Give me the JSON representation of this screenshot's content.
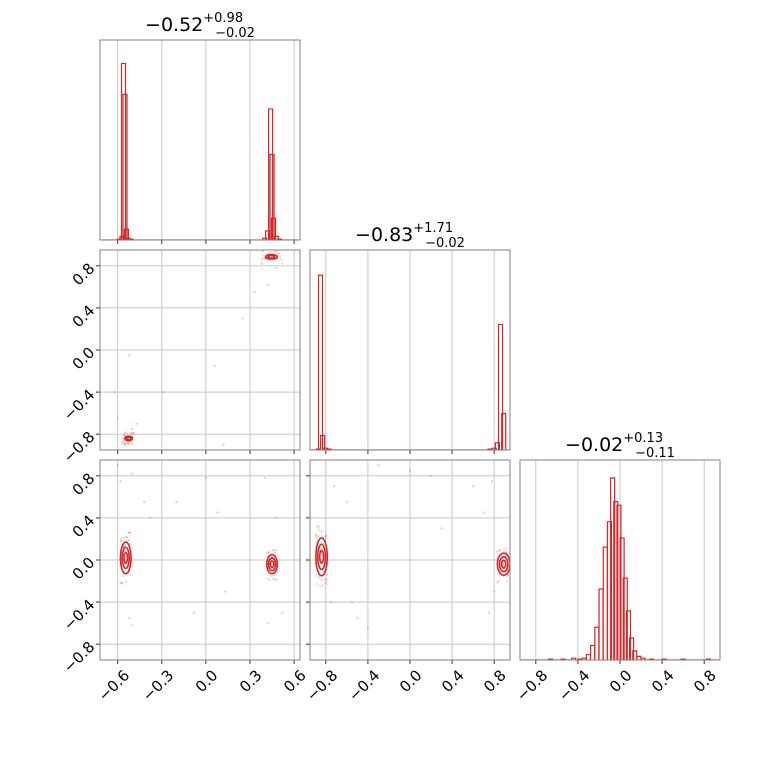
{
  "chart_data": [
    {
      "type": "corner",
      "color": "#d62728",
      "titles": [
        {
          "value": "−0.52",
          "plus": "+0.98",
          "minus": "−0.02"
        },
        {
          "value": "−0.83",
          "plus": "+1.71",
          "minus": "−0.02"
        },
        {
          "value": "−0.02",
          "plus": "+0.13",
          "minus": "−0.11"
        }
      ],
      "ranges": [
        [
          -0.72,
          0.64
        ],
        [
          -0.95,
          0.95
        ],
        [
          -0.95,
          0.95
        ]
      ],
      "ticks": [
        {
          "values": [
            -0.6,
            -0.3,
            0.0,
            0.3,
            0.6
          ],
          "labels": [
            "−0.6",
            "−0.3",
            "0.0",
            "0.3",
            "0.6"
          ]
        },
        {
          "values": [
            -0.8,
            -0.4,
            0.0,
            0.4,
            0.8
          ],
          "labels": [
            "−0.8",
            "−0.4",
            "0.0",
            "0.4",
            "0.8"
          ]
        },
        {
          "values": [
            -0.8,
            -0.4,
            0.0,
            0.4,
            0.8
          ],
          "labels": [
            "−0.8",
            "−0.4",
            "0.0",
            "0.4",
            "0.8"
          ]
        }
      ],
      "hist1d": [
        {
          "param": 0,
          "bins": [
            [
              -0.59,
              0.005
            ],
            [
              -0.57,
              0.02
            ],
            [
              -0.56,
              0.97
            ],
            [
              -0.55,
              0.8
            ],
            [
              -0.54,
              0.06
            ],
            [
              -0.53,
              0.01
            ],
            [
              -0.51,
              0.005
            ],
            [
              0.4,
              0.01
            ],
            [
              0.42,
              0.05
            ],
            [
              0.44,
              0.72
            ],
            [
              0.45,
              0.47
            ],
            [
              0.46,
              0.12
            ],
            [
              0.48,
              0.02
            ],
            [
              0.5,
              0.005
            ]
          ]
        },
        {
          "param": 1,
          "bins": [
            [
              -0.87,
              0.005
            ],
            [
              -0.85,
              0.96
            ],
            [
              -0.83,
              0.08
            ],
            [
              -0.8,
              0.01
            ],
            [
              -0.77,
              0.005
            ],
            [
              0.76,
              0.005
            ],
            [
              0.8,
              0.01
            ],
            [
              0.83,
              0.04
            ],
            [
              0.86,
              0.69
            ],
            [
              0.89,
              0.2
            ]
          ]
        },
        {
          "param": 2,
          "bins": [
            [
              -0.66,
              0.005
            ],
            [
              -0.54,
              0.005
            ],
            [
              -0.44,
              0.01
            ],
            [
              -0.38,
              0.005
            ],
            [
              -0.34,
              0.01
            ],
            [
              -0.3,
              0.03
            ],
            [
              -0.26,
              0.08
            ],
            [
              -0.22,
              0.18
            ],
            [
              -0.18,
              0.39
            ],
            [
              -0.14,
              0.62
            ],
            [
              -0.1,
              0.76
            ],
            [
              -0.07,
              1.0
            ],
            [
              -0.04,
              0.87
            ],
            [
              -0.01,
              0.85
            ],
            [
              0.02,
              0.67
            ],
            [
              0.05,
              0.45
            ],
            [
              0.08,
              0.27
            ],
            [
              0.11,
              0.12
            ],
            [
              0.14,
              0.05
            ],
            [
              0.18,
              0.02
            ],
            [
              0.22,
              0.01
            ],
            [
              0.3,
              0.005
            ],
            [
              0.42,
              0.005
            ],
            [
              0.6,
              0.005
            ],
            [
              0.84,
              0.005
            ]
          ]
        }
      ],
      "hist2d": [
        {
          "x": 0,
          "y": 1,
          "clusters": [
            {
              "x": -0.525,
              "y": -0.84,
              "rx": 0.015,
              "ry": 0.012,
              "levels": [
                1.0,
                1.8
              ],
              "points": 26
            },
            {
              "x": 0.445,
              "y": 0.885,
              "rx": 0.022,
              "ry": 0.012,
              "levels": [
                1.0,
                1.8
              ],
              "points": 22
            }
          ],
          "scatter": [
            [
              -0.6,
              -0.65
            ],
            [
              -0.62,
              -0.4
            ],
            [
              -0.52,
              -0.05
            ],
            [
              -0.47,
              -0.7
            ],
            [
              -0.29,
              -0.4
            ],
            [
              0.06,
              -0.15
            ],
            [
              0.12,
              -0.9
            ],
            [
              0.25,
              0.3
            ],
            [
              0.33,
              0.55
            ],
            [
              0.38,
              0.82
            ],
            [
              0.52,
              0.82
            ],
            [
              0.42,
              0.62
            ],
            [
              -0.55,
              -0.9
            ],
            [
              -0.5,
              -0.75
            ],
            [
              0.48,
              0.78
            ]
          ]
        },
        {
          "x": 0,
          "y": 2,
          "clusters": [
            {
              "x": -0.545,
              "y": 0.02,
              "rx": 0.012,
              "ry": 0.05,
              "levels": [
                1.0,
                2.0,
                3.0
              ],
              "points": 40
            },
            {
              "x": 0.45,
              "y": -0.04,
              "rx": 0.012,
              "ry": 0.03,
              "levels": [
                1.0,
                2.0,
                3.0
              ],
              "points": 34
            }
          ],
          "scatter": [
            [
              -0.6,
              0.9
            ],
            [
              -0.58,
              0.75
            ],
            [
              -0.5,
              0.82
            ],
            [
              -0.42,
              0.55
            ],
            [
              -0.38,
              0.4
            ],
            [
              -0.2,
              0.55
            ],
            [
              -0.08,
              -0.5
            ],
            [
              0.0,
              0.78
            ],
            [
              0.08,
              0.45
            ],
            [
              0.13,
              -0.3
            ],
            [
              0.4,
              0.78
            ],
            [
              0.48,
              0.4
            ],
            [
              0.52,
              -0.5
            ],
            [
              0.42,
              -0.6
            ],
            [
              -0.52,
              -0.55
            ],
            [
              -0.5,
              -0.62
            ]
          ]
        },
        {
          "x": 1,
          "y": 2,
          "clusters": [
            {
              "x": -0.84,
              "y": 0.03,
              "rx": 0.018,
              "ry": 0.06,
              "levels": [
                1.0,
                2.0,
                3.0
              ],
              "points": 40
            },
            {
              "x": 0.89,
              "y": -0.04,
              "rx": 0.02,
              "ry": 0.035,
              "levels": [
                1.0,
                2.0,
                3.0
              ],
              "points": 34
            }
          ],
          "scatter": [
            [
              -0.72,
              0.7
            ],
            [
              -0.6,
              0.55
            ],
            [
              -0.55,
              -0.4
            ],
            [
              -0.5,
              -0.55
            ],
            [
              -0.4,
              -0.65
            ],
            [
              -0.3,
              0.9
            ],
            [
              0.0,
              0.85
            ],
            [
              0.2,
              0.8
            ],
            [
              0.3,
              0.3
            ],
            [
              0.7,
              0.45
            ],
            [
              0.78,
              0.75
            ],
            [
              0.8,
              -0.3
            ],
            [
              0.75,
              -0.5
            ],
            [
              -0.75,
              -0.4
            ],
            [
              0.6,
              0.7
            ]
          ]
        }
      ]
    }
  ]
}
